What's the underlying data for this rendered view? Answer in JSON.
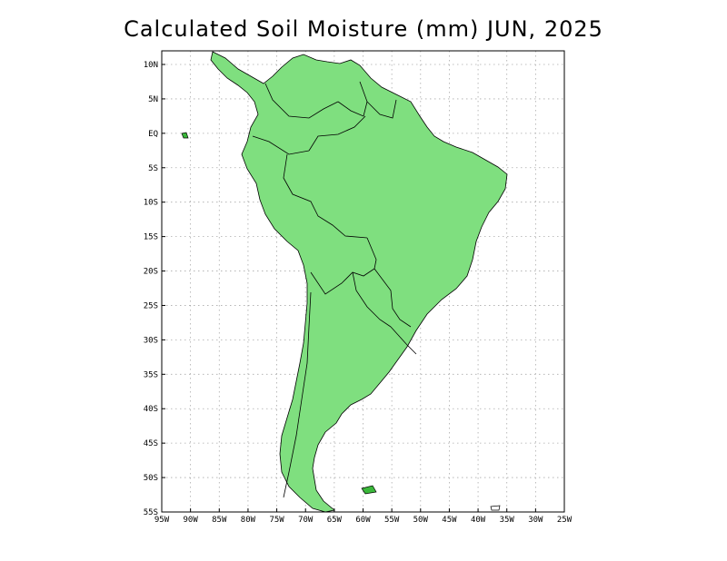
{
  "title": "Calculated Soil Moisture (mm) JUN, 2025",
  "map": {
    "variable": "Soil Moisture",
    "units": "mm",
    "month": "JUN",
    "year": "2025",
    "colormap": "green",
    "colors": [
      "#ffffff",
      "#ccf5cc",
      "#99ea99",
      "#5ed65e",
      "#2db92d",
      "#0f9a0f"
    ],
    "lon_range": [
      -95,
      -25
    ],
    "lat_range": [
      -55,
      12
    ],
    "grid": true
  },
  "axes": {
    "x_ticks": [
      "95W",
      "90W",
      "85W",
      "80W",
      "75W",
      "70W",
      "65W",
      "60W",
      "55W",
      "50W",
      "45W",
      "40W",
      "35W",
      "30W",
      "25W"
    ],
    "y_ticks": [
      "10N",
      "5N",
      "EQ",
      "5S",
      "10S",
      "15S",
      "20S",
      "25S",
      "30S",
      "35S",
      "40S",
      "45S",
      "50S",
      "55S"
    ]
  }
}
